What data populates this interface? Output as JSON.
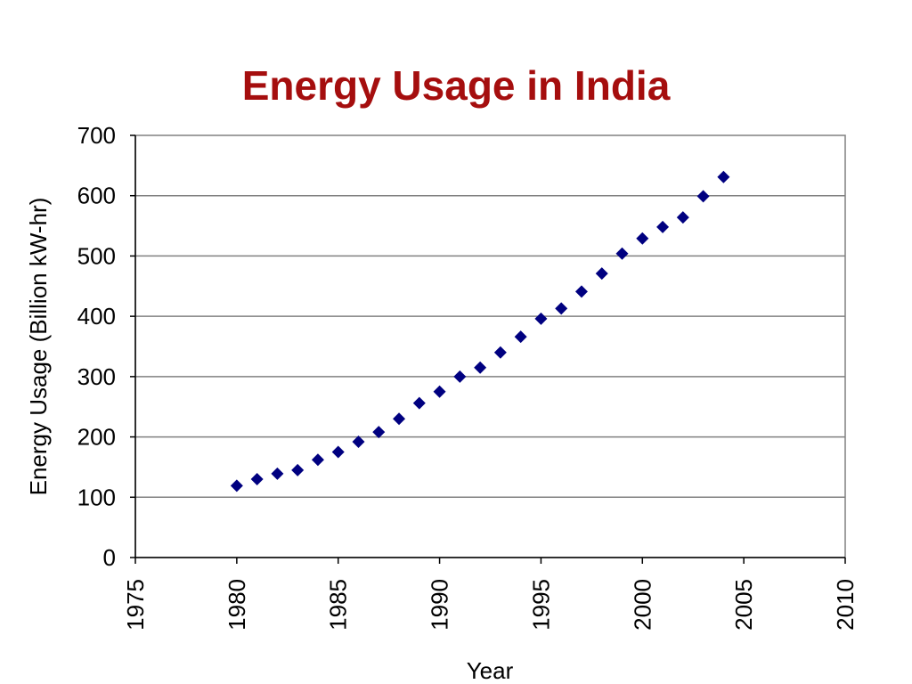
{
  "chart_data": {
    "type": "scatter",
    "title": "Energy Usage in India",
    "xlabel": "Year",
    "ylabel": "Energy Usage (Billion kW-hr)",
    "xlim": [
      1975,
      2010
    ],
    "ylim": [
      0,
      700
    ],
    "x_ticks": [
      "1975",
      "1980",
      "1985",
      "1990",
      "1995",
      "2000",
      "2005",
      "2010"
    ],
    "y_ticks": [
      "0",
      "100",
      "200",
      "300",
      "400",
      "500",
      "600",
      "700"
    ],
    "grid": "horizontal",
    "legend": "none",
    "marker": "diamond",
    "colors": {
      "title": "#a50e0e",
      "marker": "#000080",
      "grid": "#808080"
    },
    "x": [
      1980,
      1981,
      1982,
      1983,
      1984,
      1985,
      1986,
      1987,
      1988,
      1989,
      1990,
      1991,
      1992,
      1993,
      1994,
      1995,
      1996,
      1997,
      1998,
      1999,
      2000,
      2001,
      2002,
      2003,
      2004
    ],
    "y": [
      119,
      130,
      139,
      145,
      162,
      175,
      192,
      208,
      230,
      256,
      275,
      300,
      315,
      340,
      366,
      396,
      413,
      441,
      471,
      504,
      529,
      548,
      564,
      599,
      631
    ]
  }
}
